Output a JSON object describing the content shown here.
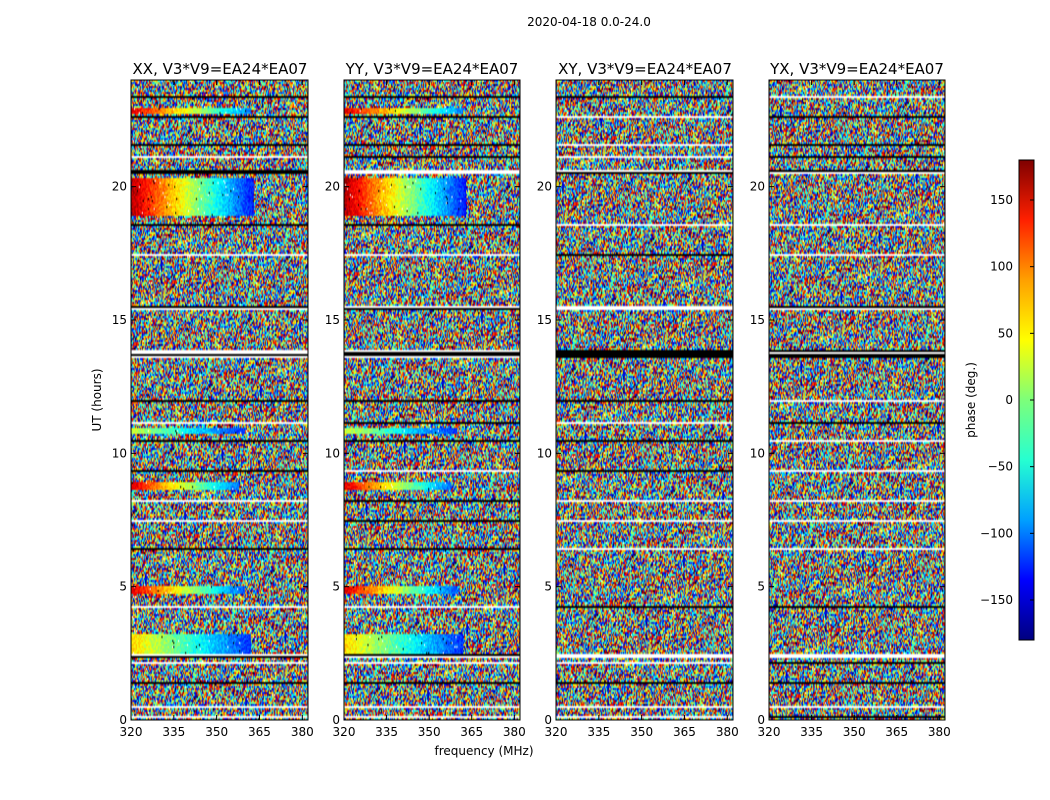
{
  "figure": {
    "suptitle": "2020-04-18 0.0-24.0",
    "ylabel": "UT (hours)",
    "xlabel": "frequency (MHz)",
    "colorbar_label": "phase (deg.)"
  },
  "chart_data": {
    "type": "heatmap",
    "x_range_mhz": [
      320,
      382
    ],
    "y_range_hours": [
      0,
      24
    ],
    "x_ticks": [
      "320",
      "335",
      "350",
      "365",
      "380"
    ],
    "y_ticks": [
      "0",
      "5",
      "10",
      "15",
      "20"
    ],
    "colorbar": {
      "range": [
        -180,
        180
      ],
      "ticks": [
        "150",
        "100",
        "50",
        "0",
        "−50",
        "−100",
        "−150"
      ],
      "colormap": [
        "#00007f",
        "#0000ff",
        "#00a0ff",
        "#26ffd1",
        "#7dff7a",
        "#ffff00",
        "#ffa000",
        "#ff2000",
        "#7f0000"
      ]
    },
    "panels": [
      {
        "title": "XX, V3*V9=EA24*EA07",
        "coherent": true
      },
      {
        "title": "YY, V3*V9=EA24*EA07",
        "coherent": true
      },
      {
        "title": "XY, V3*V9=EA24*EA07",
        "coherent": false
      },
      {
        "title": "YX, V3*V9=EA24*EA07",
        "coherent": false
      }
    ],
    "coherent_bands": [
      {
        "t0": 18.9,
        "t1": 20.3,
        "phase_start": 165,
        "phase_end": -130,
        "f_end": 363
      },
      {
        "t0": 8.65,
        "t1": 8.95,
        "phase_start": 150,
        "phase_end": -100,
        "f_end": 358
      },
      {
        "t0": 4.75,
        "t1": 5.05,
        "phase_start": 150,
        "phase_end": -110,
        "f_end": 360
      },
      {
        "t0": 2.5,
        "t1": 3.25,
        "phase_start": 60,
        "phase_end": -120,
        "f_end": 362
      },
      {
        "t0": 22.75,
        "t1": 22.95,
        "phase_start": 150,
        "phase_end": -90,
        "f_end": 362
      },
      {
        "t0": 10.7,
        "t1": 10.95,
        "phase_start": 30,
        "phase_end": -120,
        "f_end": 360
      }
    ],
    "flagged_gaps_hours": [
      [
        0.1,
        0.14
      ],
      [
        0.45,
        0.5
      ],
      [
        0.95,
        1.0
      ],
      [
        1.35,
        1.4
      ],
      [
        2.1,
        2.2
      ],
      [
        2.35,
        2.45
      ],
      [
        3.5,
        3.56
      ],
      [
        4.2,
        4.26
      ],
      [
        6.35,
        6.42
      ],
      [
        7.4,
        7.5
      ],
      [
        8.2,
        8.26
      ],
      [
        9.3,
        9.36
      ],
      [
        10.4,
        10.5
      ],
      [
        11.1,
        11.2
      ],
      [
        11.95,
        12.0
      ],
      [
        12.5,
        12.56
      ],
      [
        13.6,
        13.9
      ],
      [
        14.6,
        14.66
      ],
      [
        15.4,
        15.5
      ],
      [
        16.4,
        16.46
      ],
      [
        17.4,
        17.46
      ],
      [
        18.5,
        18.6
      ],
      [
        20.5,
        20.65
      ],
      [
        21.05,
        21.15
      ],
      [
        21.55,
        21.62
      ],
      [
        22.1,
        22.16
      ],
      [
        22.55,
        22.62
      ],
      [
        23.35,
        23.42
      ]
    ]
  }
}
